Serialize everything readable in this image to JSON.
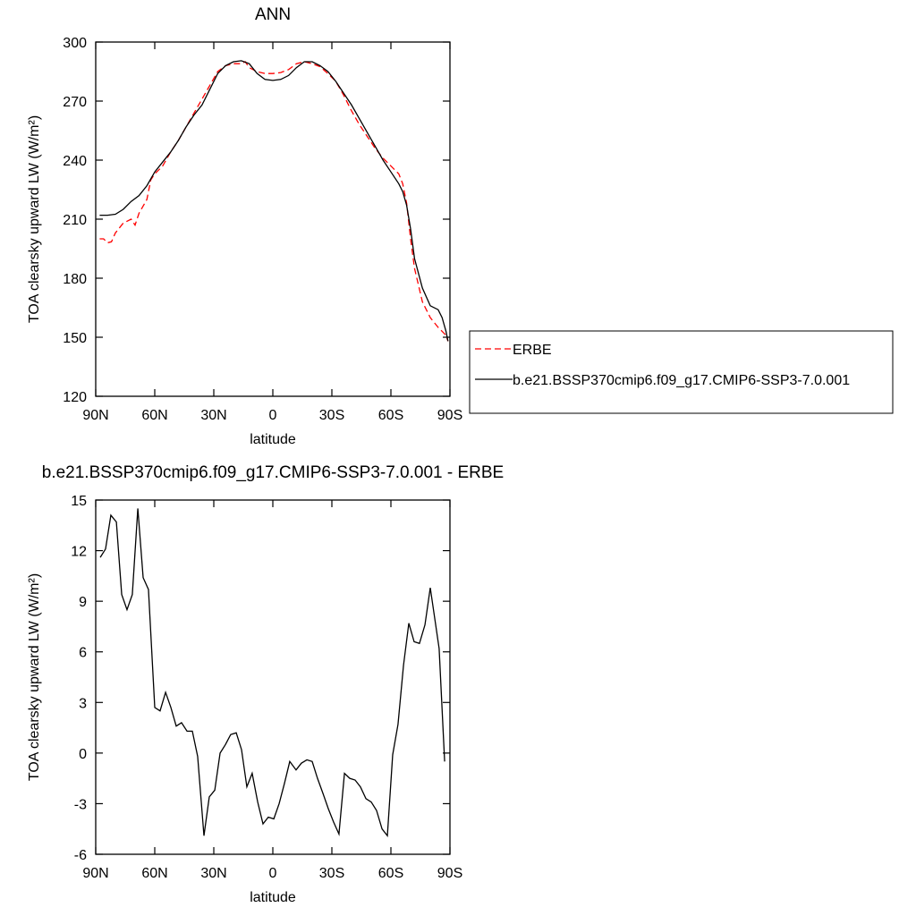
{
  "chart_data": [
    {
      "type": "line",
      "title": "ANN",
      "x_label": "latitude",
      "y_label": "TOA clearsky upward LW (W/m²)",
      "xlim": [
        90,
        -90
      ],
      "xticks": [
        {
          "value": 90,
          "label": "90N"
        },
        {
          "value": 60,
          "label": "60N"
        },
        {
          "value": 30,
          "label": "30N"
        },
        0,
        {
          "value": -30,
          "label": "30S"
        },
        {
          "value": -60,
          "label": "60S"
        },
        {
          "value": -90,
          "label": "90S"
        }
      ],
      "ylim": [
        120,
        300
      ],
      "yticks": [
        120,
        150,
        180,
        210,
        240,
        270,
        300
      ],
      "legend": "right",
      "series": [
        {
          "name": "ERBE",
          "color": "#ff0000",
          "dash": true,
          "x": [
            88,
            86,
            84,
            82,
            80,
            76,
            72,
            70,
            68,
            64,
            62,
            60,
            56,
            52,
            48,
            44,
            40,
            36,
            32,
            28,
            24,
            20,
            16,
            14,
            12,
            8,
            4,
            0,
            -4,
            -8,
            -12,
            -16,
            -20,
            -24,
            -28,
            -32,
            -36,
            -40,
            -44,
            -48,
            -52,
            -56,
            -60,
            -64,
            -66,
            -68,
            -70,
            -72,
            -76,
            -80,
            -84,
            -88,
            -89
          ],
          "values": [
            200,
            200,
            198,
            198.5,
            203,
            208,
            210,
            207,
            213,
            220,
            230,
            233,
            237,
            244,
            250,
            257,
            264,
            271,
            278,
            285,
            288,
            289,
            289,
            290,
            287,
            285,
            284,
            284,
            284.5,
            286,
            289,
            290,
            289,
            287.5,
            284,
            280,
            273,
            265,
            258,
            252,
            246,
            241,
            237,
            233,
            228,
            218,
            200,
            185,
            168,
            160,
            155,
            151,
            148
          ]
        },
        {
          "name": "b.e21.BSSP370cmip6.f09_g17.CMIP6-SSP3-7.0.001",
          "color": "#000000",
          "dash": false,
          "x": [
            88,
            84,
            80,
            76,
            72,
            68,
            64,
            60,
            56,
            52,
            48,
            44,
            40,
            36,
            32,
            28,
            24,
            20,
            16,
            12,
            8,
            4,
            0,
            -4,
            -8,
            -12,
            -16,
            -20,
            -24,
            -28,
            -32,
            -36,
            -40,
            -44,
            -48,
            -52,
            -56,
            -60,
            -64,
            -66,
            -68,
            -70,
            -72,
            -76,
            -80,
            -84,
            -86,
            -88,
            -89
          ],
          "values": [
            212,
            212,
            212.5,
            215,
            219,
            222,
            227,
            234,
            239,
            244,
            250,
            257,
            263,
            268,
            276,
            284,
            288,
            290,
            290.5,
            289,
            284,
            281,
            280.5,
            281,
            283,
            287,
            290,
            290,
            288,
            285,
            280,
            274,
            268,
            261,
            254,
            247,
            240,
            234,
            228,
            224,
            217,
            205,
            190,
            175,
            166,
            164,
            160,
            153,
            148
          ]
        }
      ]
    },
    {
      "type": "line",
      "title": "b.e21.BSSP370cmip6.f09_g17.CMIP6-SSP3-7.0.001 - ERBE",
      "x_label": "latitude",
      "y_label": "TOA clearsky upward LW (W/m²)",
      "xlim": [
        90,
        -90
      ],
      "xticks": [
        {
          "value": 90,
          "label": "90N"
        },
        {
          "value": 60,
          "label": "60N"
        },
        {
          "value": 30,
          "label": "30N"
        },
        0,
        {
          "value": -30,
          "label": "30S"
        },
        {
          "value": -60,
          "label": "60S"
        },
        {
          "value": -90,
          "label": "90S"
        }
      ],
      "ylim": [
        -6,
        15
      ],
      "yticks": [
        -6,
        -3,
        0,
        3,
        6,
        9,
        12,
        15
      ],
      "series": [
        {
          "color": "#000000",
          "dash": false,
          "x": [
            87.7,
            85,
            82.3,
            79.5,
            76.8,
            74.1,
            71.4,
            68.6,
            65.9,
            63.2,
            60,
            57.3,
            54.5,
            51.8,
            49.1,
            46.4,
            43.6,
            40.9,
            38.2,
            35,
            32.3,
            29.5,
            26.8,
            24.1,
            21.4,
            18.6,
            15.9,
            13.2,
            10.5,
            7.7,
            5,
            2.3,
            -0.5,
            -3.2,
            -5.9,
            -8.6,
            -11.8,
            -14.5,
            -17.3,
            -20,
            -22.7,
            -25.5,
            -28.2,
            -30.9,
            -33.6,
            -36.4,
            -39.1,
            -41.8,
            -44.5,
            -47.3,
            -50,
            -52.7,
            -55.5,
            -58.2,
            -60.9,
            -63.6,
            -66.4,
            -69.1,
            -71.8,
            -74.5,
            -77.3,
            -80,
            -84.5,
            -87.3
          ],
          "values": [
            11.6,
            12.1,
            14.1,
            13.7,
            9.4,
            8.5,
            9.4,
            14.5,
            10.4,
            9.7,
            2.7,
            2.5,
            3.6,
            2.7,
            1.6,
            1.8,
            1.3,
            1.3,
            -0.2,
            -4.9,
            -2.6,
            -2.2,
            0,
            0.5,
            1.1,
            1.2,
            0.2,
            -2.0,
            -1.2,
            -2.9,
            -4.2,
            -3.8,
            -3.9,
            -3.0,
            -1.8,
            -0.5,
            -1.0,
            -0.6,
            -0.4,
            -0.5,
            -1.5,
            -2.4,
            -3.3,
            -4.1,
            -4.8,
            -1.2,
            -1.5,
            -1.6,
            -2.0,
            -2.7,
            -2.9,
            -3.4,
            -4.5,
            -4.9,
            -0.1,
            1.7,
            5.2,
            7.7,
            6.6,
            6.5,
            7.6,
            9.8,
            6.2,
            -0.5
          ]
        }
      ]
    }
  ]
}
